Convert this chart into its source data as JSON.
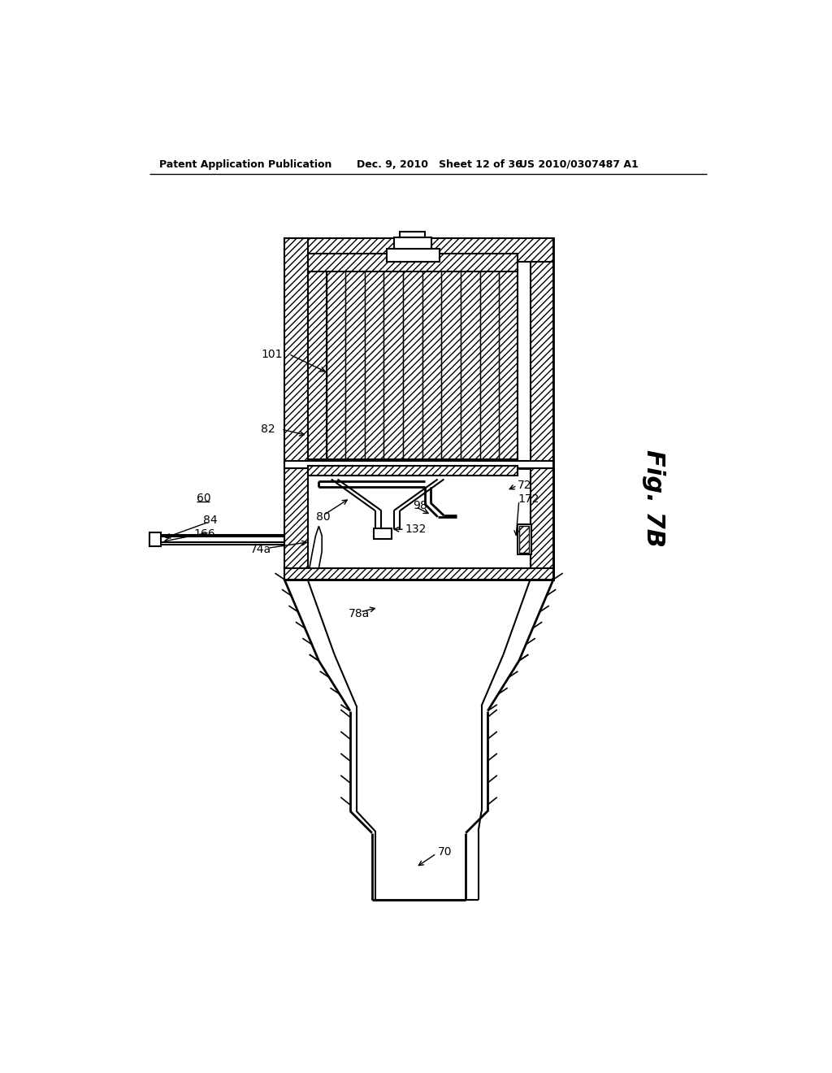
{
  "title_left": "Patent Application Publication",
  "title_mid": "Dec. 9, 2010   Sheet 12 of 36",
  "title_right": "US 2010/0307487 A1",
  "fig_label": "Fig. 7B",
  "bg_color": "#ffffff",
  "line_color": "#000000"
}
